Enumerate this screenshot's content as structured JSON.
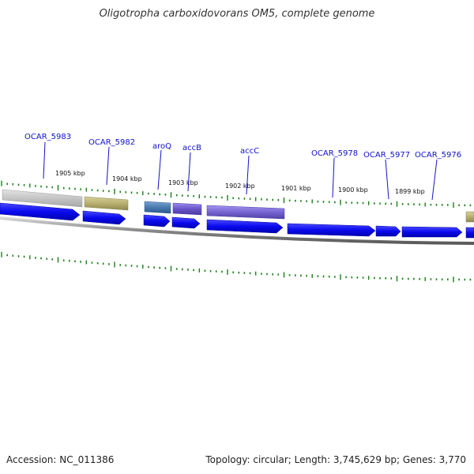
{
  "title": "Oligotropha carboxidovorans OM5, complete genome",
  "footer": {
    "accession": "Accession: NC_011386",
    "stats": "Topology: circular; Length: 3,745,629 bp; Genes: 3,770"
  },
  "colors": {
    "cds_blue": "#0a0aee",
    "tick_green": "#1a7f1a",
    "gene_label_blue": "#1111cc",
    "backbone_gray": "#888888",
    "ortholog_gray": "#c8c8c8",
    "ortholog_olive": "#b8b070",
    "ortholog_steelblue": "#4a7ab0",
    "ortholog_purple": "#6a55c8"
  },
  "kbp_labels": [
    {
      "kbp": 1905,
      "text": "1905 kbp"
    },
    {
      "kbp": 1904,
      "text": "1904 kbp"
    },
    {
      "kbp": 1903,
      "text": "1903 kbp"
    },
    {
      "kbp": 1902,
      "text": "1902 kbp"
    },
    {
      "kbp": 1901,
      "text": "1901 kbp"
    },
    {
      "kbp": 1900,
      "text": "1900 kbp"
    },
    {
      "kbp": 1899,
      "text": "1899 kbp"
    }
  ],
  "genes": [
    {
      "name": "OCAR_5983",
      "ortholog_color": "ortholog_gray"
    },
    {
      "name": "OCAR_5982",
      "ortholog_color": "ortholog_olive"
    },
    {
      "name": "aroQ",
      "ortholog_color": "ortholog_steelblue"
    },
    {
      "name": "accB",
      "ortholog_color": "ortholog_purple"
    },
    {
      "name": "accC",
      "ortholog_color": "ortholog_purple"
    },
    {
      "name": "OCAR_5978",
      "ortholog_color": ""
    },
    {
      "name": "OCAR_5977",
      "ortholog_color": ""
    },
    {
      "name": "OCAR_5976",
      "ortholog_color": ""
    }
  ]
}
